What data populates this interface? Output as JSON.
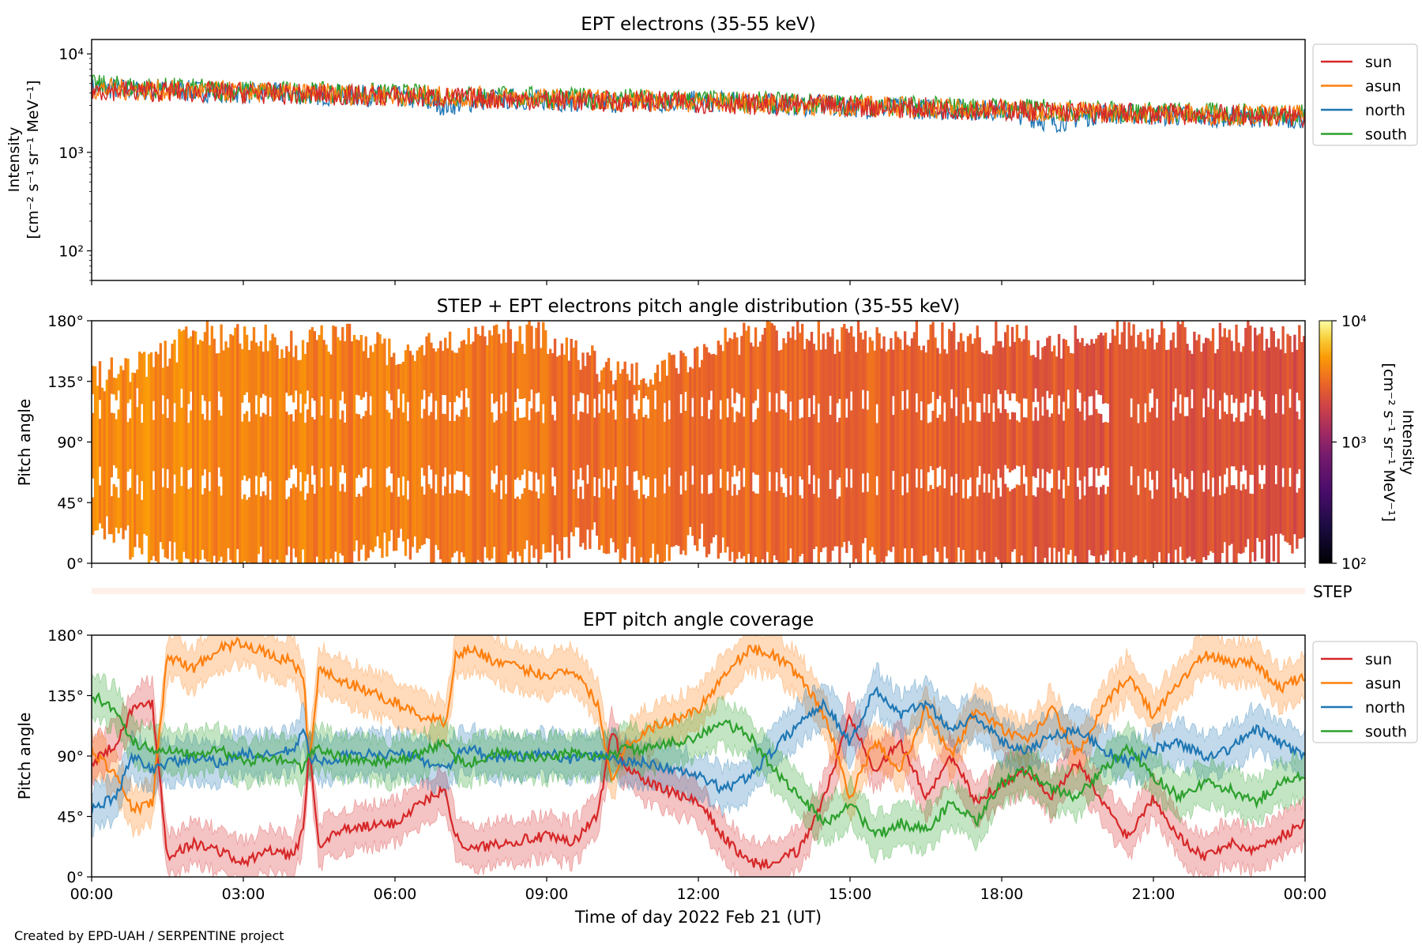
{
  "figure": {
    "footer": "Created by EPD-UAH / SERPENTINE project",
    "xlabel": "Time of day 2022 Feb 21 (UT)",
    "time_ticks": [
      "00:00",
      "03:00",
      "06:00",
      "09:00",
      "12:00",
      "15:00",
      "18:00",
      "21:00",
      "00:00"
    ],
    "x_range_hours": [
      0,
      24
    ]
  },
  "chart_data": [
    {
      "type": "line",
      "title": "EPT electrons (35-55 keV)",
      "ylabel_lines": [
        "Intensity",
        "[cm⁻² s⁻¹ sr⁻¹ MeV⁻¹]"
      ],
      "yscale": "log",
      "ylim": [
        50,
        14000
      ],
      "y_tick_labels": [
        "10⁴",
        "10³",
        "10²"
      ],
      "y_tick_values": [
        10000,
        1000,
        100
      ],
      "legend_placement": "outside-right",
      "series": [
        {
          "name": "sun",
          "color": "#d62728",
          "x": [
            0,
            1,
            2,
            3,
            4,
            5,
            6,
            7,
            8,
            9,
            10,
            11,
            12,
            13,
            14,
            15,
            16,
            17,
            18,
            19,
            20,
            21,
            22,
            23,
            24
          ],
          "values": [
            4300,
            4200,
            4100,
            4000,
            3900,
            3800,
            3700,
            3600,
            3500,
            3400,
            3300,
            3300,
            3200,
            3100,
            3000,
            2950,
            2850,
            2750,
            2700,
            2600,
            2500,
            2450,
            2400,
            2350,
            2300
          ]
        },
        {
          "name": "asun",
          "color": "#ff7f0e",
          "x": [
            0,
            1,
            2,
            3,
            4,
            5,
            6,
            7,
            8,
            9,
            10,
            11,
            12,
            13,
            14,
            15,
            16,
            17,
            18,
            19,
            20,
            21,
            22,
            23,
            24
          ],
          "values": [
            4400,
            4300,
            4200,
            4100,
            4000,
            3900,
            3800,
            3700,
            3600,
            3500,
            3400,
            3350,
            3250,
            3150,
            3050,
            2950,
            2900,
            2800,
            2700,
            2650,
            2550,
            2500,
            2450,
            2400,
            2350
          ]
        },
        {
          "name": "north",
          "color": "#1f77b4",
          "x": [
            0,
            1,
            2,
            3,
            4,
            5,
            6,
            7,
            8,
            9,
            10,
            11,
            12,
            13,
            14,
            15,
            16,
            17,
            18,
            19,
            20,
            21,
            22,
            23,
            24
          ],
          "values": [
            4500,
            4300,
            4200,
            4000,
            3900,
            3800,
            3700,
            3000,
            3500,
            3400,
            3200,
            3200,
            3300,
            3200,
            3000,
            2900,
            2800,
            2700,
            2700,
            2000,
            2500,
            2400,
            2300,
            2300,
            2200
          ]
        },
        {
          "name": "south",
          "color": "#2ca02c",
          "x": [
            0,
            1,
            2,
            3,
            4,
            5,
            6,
            7,
            8,
            9,
            10,
            11,
            12,
            13,
            14,
            15,
            16,
            17,
            18,
            19,
            20,
            21,
            22,
            23,
            24
          ],
          "values": [
            4800,
            4600,
            4400,
            4200,
            4100,
            4000,
            3900,
            3800,
            3700,
            3600,
            3500,
            3450,
            3350,
            3250,
            3150,
            3050,
            2950,
            2850,
            2800,
            2700,
            2600,
            2550,
            2500,
            2450,
            2400
          ]
        }
      ]
    },
    {
      "type": "heatmap",
      "title": "STEP + EPT electrons pitch angle distribution (35-55 keV)",
      "ylabel": "Pitch angle",
      "ylim": [
        0,
        180
      ],
      "y_tick_labels": [
        "180°",
        "135°",
        "90°",
        "45°",
        "0°"
      ],
      "y_tick_values": [
        180,
        135,
        90,
        45,
        0
      ],
      "colorbar": {
        "label_lines": [
          "Intensity",
          "[cm⁻² s⁻¹ sr⁻¹ MeV⁻¹]"
        ],
        "scale": "log",
        "range": [
          100,
          10000
        ],
        "tick_labels": [
          "10⁴",
          "10³",
          "10²"
        ],
        "tick_values": [
          10000,
          1000,
          100
        ],
        "colormap": "inferno"
      },
      "hours": [
        0,
        1,
        2,
        3,
        4,
        5,
        6,
        7,
        8,
        9,
        10,
        11,
        12,
        13,
        14,
        15,
        16,
        17,
        18,
        19,
        20,
        21,
        22,
        23,
        24
      ],
      "coverage_min_deg": [
        30,
        10,
        0,
        0,
        0,
        0,
        20,
        0,
        0,
        10,
        20,
        0,
        20,
        0,
        0,
        10,
        0,
        0,
        0,
        0,
        0,
        0,
        0,
        10,
        10
      ],
      "coverage_max_deg": [
        150,
        160,
        180,
        180,
        175,
        180,
        170,
        180,
        180,
        180,
        160,
        150,
        170,
        180,
        180,
        180,
        180,
        180,
        180,
        175,
        180,
        180,
        180,
        180,
        180
      ],
      "intensity": [
        4300,
        4200,
        4100,
        4000,
        3900,
        3800,
        3700,
        3600,
        3500,
        3400,
        3300,
        3300,
        3200,
        3100,
        3000,
        2950,
        2850,
        2750,
        2700,
        2600,
        2500,
        2450,
        2400,
        2350,
        2300
      ]
    },
    {
      "type": "line",
      "title": "EPT pitch angle coverage",
      "ylabel": "Pitch angle",
      "ylim": [
        0,
        180
      ],
      "y_tick_labels": [
        "180°",
        "135°",
        "90°",
        "45°",
        "0°"
      ],
      "y_tick_values": [
        180,
        135,
        90,
        45,
        0
      ],
      "strip_label": "STEP",
      "legend_placement": "outside-right",
      "x": [
        0,
        0.5,
        0.8,
        1.2,
        1.5,
        2,
        2.5,
        3,
        3.5,
        4,
        4.2,
        4.3,
        4.5,
        5,
        6,
        6.5,
        7,
        7.2,
        7.5,
        8,
        9,
        9.5,
        10,
        10.3,
        10.5,
        11,
        12,
        12.5,
        13,
        13.5,
        14,
        14.5,
        15,
        15.5,
        16,
        16.5,
        17,
        17.5,
        18,
        18.5,
        19,
        19.5,
        20,
        20.5,
        21,
        21.5,
        22,
        22.5,
        23,
        23.5,
        24
      ],
      "series": [
        {
          "name": "sun",
          "color": "#d62728",
          "values": [
            85,
            100,
            125,
            130,
            15,
            25,
            20,
            10,
            20,
            15,
            40,
            95,
            25,
            35,
            40,
            55,
            65,
            30,
            20,
            25,
            30,
            25,
            45,
            110,
            85,
            70,
            55,
            30,
            10,
            10,
            20,
            60,
            120,
            80,
            100,
            60,
            90,
            55,
            70,
            80,
            60,
            85,
            55,
            30,
            60,
            30,
            15,
            25,
            20,
            30,
            40
          ]
        },
        {
          "name": "asun",
          "color": "#ff7f0e",
          "values": [
            95,
            75,
            50,
            55,
            165,
            155,
            170,
            175,
            165,
            160,
            145,
            85,
            155,
            145,
            130,
            120,
            115,
            165,
            170,
            160,
            150,
            155,
            130,
            70,
            95,
            110,
            125,
            150,
            170,
            165,
            150,
            120,
            60,
            100,
            80,
            125,
            90,
            125,
            110,
            100,
            125,
            90,
            125,
            150,
            120,
            145,
            165,
            160,
            160,
            140,
            150
          ]
        },
        {
          "name": "north",
          "color": "#1f77b4",
          "values": [
            50,
            60,
            90,
            80,
            85,
            88,
            85,
            92,
            90,
            95,
            110,
            90,
            85,
            90,
            92,
            88,
            80,
            90,
            95,
            88,
            92,
            88,
            90,
            90,
            85,
            85,
            75,
            65,
            75,
            95,
            115,
            130,
            100,
            140,
            120,
            130,
            110,
            120,
            100,
            95,
            105,
            110,
            95,
            85,
            95,
            100,
            90,
            95,
            110,
            100,
            90
          ]
        },
        {
          "name": "south",
          "color": "#2ca02c",
          "values": [
            135,
            125,
            100,
            95,
            95,
            92,
            95,
            85,
            90,
            85,
            80,
            90,
            95,
            88,
            85,
            92,
            100,
            88,
            85,
            92,
            88,
            92,
            90,
            90,
            95,
            95,
            105,
            115,
            105,
            80,
            60,
            40,
            55,
            30,
            40,
            35,
            55,
            40,
            70,
            80,
            65,
            60,
            80,
            95,
            75,
            60,
            70,
            65,
            55,
            70,
            75
          ]
        }
      ]
    }
  ]
}
